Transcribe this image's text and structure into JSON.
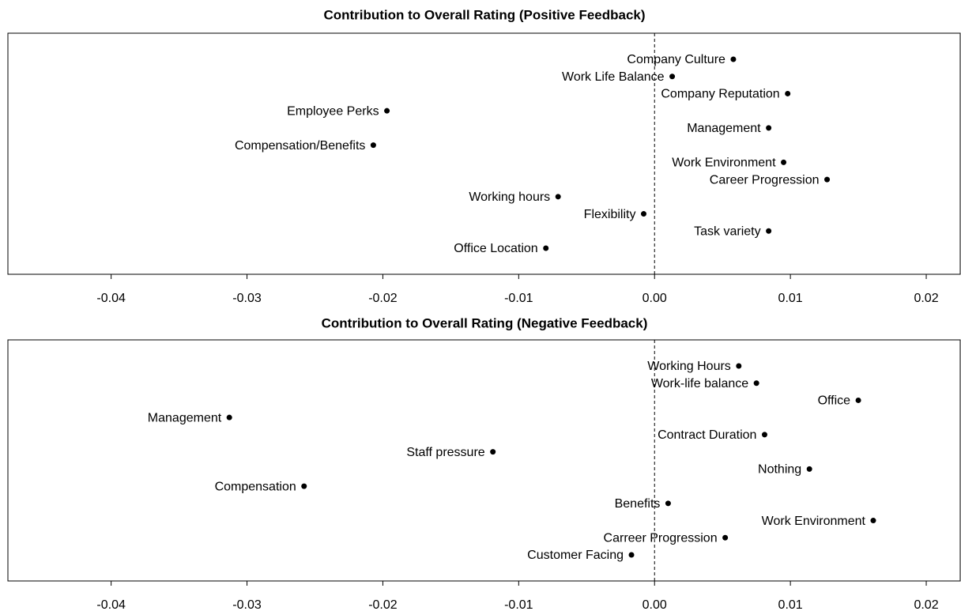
{
  "chart_data": [
    {
      "type": "dot",
      "title": "Contribution to Overall Rating (Positive Feedback)",
      "categories": [
        "Company Culture",
        "Work Life Balance",
        "Company Reputation",
        "Employee Perks",
        "Management",
        "Compensation/Benefits",
        "Work Environment",
        "Career Progression",
        "Working hours",
        "Flexibility",
        "Task variety",
        "Office Location"
      ],
      "values": [
        0.0058,
        0.0013,
        0.0098,
        -0.0197,
        0.0084,
        -0.0207,
        0.0095,
        0.0127,
        -0.0071,
        -0.0008,
        0.0084,
        -0.008
      ],
      "color": "#000000",
      "xlim": [
        -0.0476,
        0.0225
      ],
      "xticks": [
        -0.04,
        -0.03,
        -0.02,
        -0.01,
        {
          "value": 0,
          "label": "0.00"
        },
        0.01,
        0.02
      ],
      "vline": 0
    },
    {
      "type": "dot",
      "title": "Contribution to Overall Rating (Negative Feedback)",
      "categories": [
        "Working Hours",
        "Work-life balance",
        "Office",
        "Management",
        "Contract Duration",
        "Staff pressure",
        "Nothing",
        "Compensation",
        "Benefits",
        "Work Environment",
        "Carreer Progression",
        "Customer Facing"
      ],
      "values": [
        0.0062,
        0.0075,
        0.015,
        -0.0313,
        0.0081,
        -0.0119,
        0.0114,
        -0.0258,
        0.001,
        0.0161,
        0.0052,
        -0.0017
      ],
      "color": "#000000",
      "xlim": [
        -0.0476,
        0.0225
      ],
      "xticks": [
        -0.04,
        -0.03,
        -0.02,
        -0.01,
        {
          "value": 0,
          "label": "0.00"
        },
        0.01,
        0.02
      ],
      "vline": 0
    }
  ]
}
